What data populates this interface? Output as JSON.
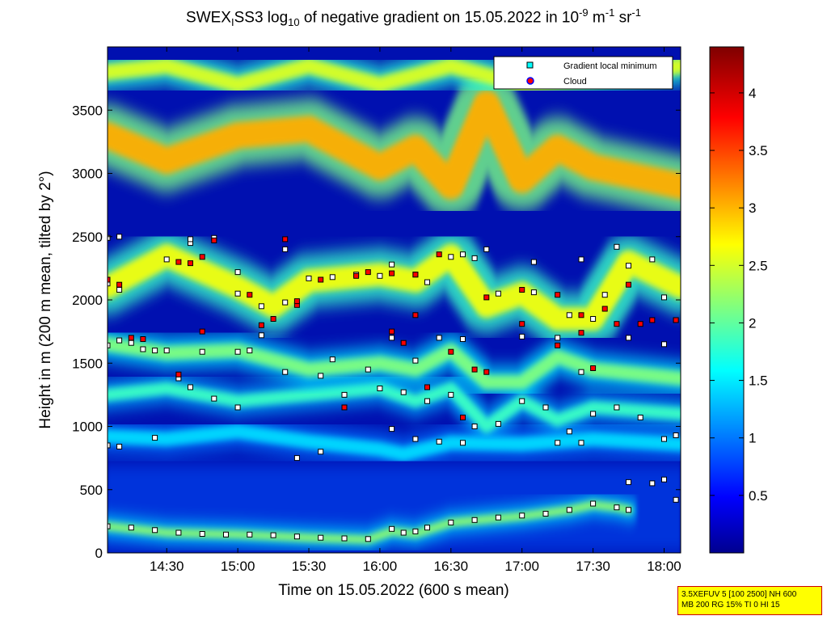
{
  "title": {
    "prefix": "SWEX",
    "sub1": "I",
    "mid": "SS3 log",
    "sub2": "10",
    "rest": " of negative gradient on 15.05.2022 in 10",
    "sup1": "-9",
    "unit1": " m",
    "sup2": "-1",
    "unit2": " sr",
    "sup3": "-1"
  },
  "param_box": {
    "line1": "3.5XEFUV 5 [100 2500] NH 600",
    "line2": "MB 200 RG 15% TI 0 HI 15"
  },
  "chart_data": {
    "type": "heatmap",
    "xlabel": "Time on 15.05.2022 (600 s mean)",
    "ylabel": "Height in m (200 m mean, tilted by 2°)",
    "xlim": [
      "14:05",
      "18:07"
    ],
    "ylim": [
      0,
      4000
    ],
    "x_ticks": [
      "14:30",
      "15:00",
      "15:30",
      "16:00",
      "16:30",
      "17:00",
      "17:30",
      "18:00"
    ],
    "y_ticks": [
      0,
      500,
      1000,
      1500,
      2000,
      2500,
      3000,
      3500
    ],
    "colorbar": {
      "ticks": [
        0.5,
        1,
        1.5,
        2,
        2.5,
        3,
        3.5,
        4
      ],
      "range": [
        0,
        4.4
      ],
      "colormap": "jet"
    },
    "legend": {
      "placement": "top-right",
      "entries": [
        {
          "label": "Gradient local minimum",
          "marker": "square",
          "color": "#00ffff"
        },
        {
          "label": "Cloud",
          "marker": "circle",
          "color": "#ff0000",
          "edge": "#0000ff"
        }
      ]
    },
    "layers": [
      {
        "name": "surface",
        "points": [
          [
            "14:05",
            210
          ],
          [
            "14:30",
            160
          ],
          [
            "15:00",
            145
          ],
          [
            "15:30",
            120
          ],
          [
            "15:55",
            105
          ],
          [
            "16:05",
            170
          ],
          [
            "16:15",
            150
          ],
          [
            "16:30",
            240
          ],
          [
            "17:00",
            290
          ],
          [
            "17:20",
            340
          ],
          [
            "17:30",
            380
          ],
          [
            "17:40",
            360
          ],
          [
            "17:45",
            340
          ]
        ],
        "level": 2.3,
        "width": 90
      },
      {
        "name": "low-band",
        "points": [
          [
            "14:05",
            920
          ],
          [
            "14:30",
            900
          ],
          [
            "15:00",
            960
          ],
          [
            "15:30",
            880
          ],
          [
            "16:00",
            820
          ],
          [
            "16:10",
            780
          ],
          [
            "16:30",
            870
          ],
          [
            "17:00",
            860
          ],
          [
            "17:30",
            900
          ],
          [
            "18:07",
            860
          ]
        ],
        "level": 1.5,
        "width": 160
      },
      {
        "name": "mid-band-1",
        "points": [
          [
            "14:05",
            1250
          ],
          [
            "14:30",
            1300
          ],
          [
            "15:00",
            1200
          ],
          [
            "15:30",
            1250
          ],
          [
            "16:00",
            1300
          ],
          [
            "16:15",
            1200
          ],
          [
            "16:30",
            1300
          ],
          [
            "16:45",
            1000
          ],
          [
            "17:00",
            1200
          ],
          [
            "17:15",
            1050
          ],
          [
            "17:30",
            1150
          ],
          [
            "18:07",
            1100
          ]
        ],
        "level": 1.9,
        "width": 140
      },
      {
        "name": "mid-band-2",
        "points": [
          [
            "14:05",
            1650
          ],
          [
            "14:30",
            1580
          ],
          [
            "15:00",
            1600
          ],
          [
            "15:30",
            1450
          ],
          [
            "16:00",
            1500
          ],
          [
            "16:15",
            1450
          ],
          [
            "16:30",
            1600
          ],
          [
            "16:45",
            1350
          ],
          [
            "17:00",
            1350
          ],
          [
            "17:15",
            1550
          ],
          [
            "17:30",
            1450
          ],
          [
            "18:07",
            1380
          ]
        ],
        "level": 2.2,
        "width": 160
      },
      {
        "name": "upper-band-1",
        "points": [
          [
            "14:05",
            2100
          ],
          [
            "14:30",
            2350
          ],
          [
            "15:00",
            2100
          ],
          [
            "15:15",
            1950
          ],
          [
            "15:30",
            2150
          ],
          [
            "16:00",
            2200
          ],
          [
            "16:15",
            2150
          ],
          [
            "16:30",
            2350
          ],
          [
            "16:45",
            1950
          ],
          [
            "17:00",
            2050
          ],
          [
            "17:15",
            1850
          ],
          [
            "17:30",
            1850
          ],
          [
            "17:45",
            2300
          ],
          [
            "18:07",
            2100
          ]
        ],
        "level": 2.7,
        "width": 260
      },
      {
        "name": "upper-band-2",
        "points": [
          [
            "14:05",
            3300
          ],
          [
            "14:30",
            3100
          ],
          [
            "15:00",
            3300
          ],
          [
            "15:30",
            3350
          ],
          [
            "16:00",
            3050
          ],
          [
            "16:15",
            3200
          ],
          [
            "16:30",
            2900
          ],
          [
            "16:45",
            3550
          ],
          [
            "17:00",
            2950
          ],
          [
            "17:15",
            3200
          ],
          [
            "17:30",
            3050
          ],
          [
            "18:07",
            2900
          ]
        ],
        "level": 3.1,
        "width": 300
      },
      {
        "name": "top-band",
        "points": [
          [
            "14:05",
            3800
          ],
          [
            "14:30",
            3850
          ],
          [
            "15:00",
            3700
          ],
          [
            "15:30",
            3850
          ],
          [
            "16:00",
            3700
          ],
          [
            "16:30",
            3850
          ],
          [
            "17:00",
            3700
          ],
          [
            "17:30",
            3750
          ],
          [
            "18:07",
            3850
          ]
        ],
        "level": 2.6,
        "width": 180
      }
    ],
    "markers_min": [
      [
        "14:05",
        2130
      ],
      [
        "14:10",
        2080
      ],
      [
        "14:20",
        1610
      ],
      [
        "14:25",
        1600
      ],
      [
        "14:30",
        1600
      ],
      [
        "14:45",
        1590
      ],
      [
        "15:00",
        1590
      ],
      [
        "15:05",
        1600
      ],
      [
        "15:20",
        1430
      ],
      [
        "15:35",
        1400
      ],
      [
        "15:45",
        1250
      ],
      [
        "15:55",
        1450
      ],
      [
        "16:00",
        1300
      ],
      [
        "16:10",
        1270
      ],
      [
        "16:20",
        1200
      ],
      [
        "16:30",
        1250
      ],
      [
        "16:40",
        1000
      ],
      [
        "16:50",
        1020
      ],
      [
        "17:00",
        1200
      ],
      [
        "17:10",
        1150
      ],
      [
        "17:20",
        960
      ],
      [
        "17:30",
        1100
      ],
      [
        "17:40",
        1150
      ],
      [
        "17:50",
        1070
      ],
      [
        "18:00",
        900
      ],
      [
        "18:05",
        930
      ],
      [
        "14:05",
        1640
      ],
      [
        "14:10",
        1680
      ],
      [
        "14:15",
        1660
      ],
      [
        "14:35",
        1380
      ],
      [
        "14:40",
        1310
      ],
      [
        "14:50",
        1220
      ],
      [
        "15:10",
        1720
      ],
      [
        "15:40",
        1530
      ],
      [
        "16:05",
        1700
      ],
      [
        "16:15",
        1520
      ],
      [
        "16:25",
        1700
      ],
      [
        "16:35",
        1690
      ],
      [
        "17:00",
        1710
      ],
      [
        "17:15",
        1700
      ],
      [
        "17:25",
        1430
      ],
      [
        "17:45",
        1700
      ],
      [
        "18:00",
        1650
      ],
      [
        "14:30",
        2320
      ],
      [
        "14:40",
        2450
      ],
      [
        "15:00",
        2050
      ],
      [
        "15:10",
        1950
      ],
      [
        "15:20",
        1980
      ],
      [
        "15:30",
        2170
      ],
      [
        "15:40",
        2180
      ],
      [
        "15:50",
        2200
      ],
      [
        "16:00",
        2190
      ],
      [
        "16:20",
        2140
      ],
      [
        "16:30",
        2340
      ],
      [
        "16:40",
        2330
      ],
      [
        "16:50",
        2050
      ],
      [
        "17:05",
        2060
      ],
      [
        "17:20",
        1880
      ],
      [
        "17:30",
        1850
      ],
      [
        "17:35",
        2040
      ],
      [
        "17:45",
        2270
      ],
      [
        "18:00",
        2020
      ],
      [
        "14:05",
        210
      ],
      [
        "14:15",
        200
      ],
      [
        "14:25",
        180
      ],
      [
        "14:35",
        160
      ],
      [
        "14:45",
        150
      ],
      [
        "14:55",
        145
      ],
      [
        "15:05",
        145
      ],
      [
        "15:15",
        140
      ],
      [
        "15:25",
        130
      ],
      [
        "15:35",
        120
      ],
      [
        "15:45",
        115
      ],
      [
        "15:55",
        110
      ],
      [
        "16:05",
        190
      ],
      [
        "16:10",
        160
      ],
      [
        "16:15",
        170
      ],
      [
        "16:20",
        200
      ],
      [
        "16:30",
        240
      ],
      [
        "16:40",
        260
      ],
      [
        "16:50",
        280
      ],
      [
        "17:00",
        295
      ],
      [
        "17:10",
        310
      ],
      [
        "17:20",
        340
      ],
      [
        "17:30",
        390
      ],
      [
        "17:40",
        360
      ],
      [
        "17:45",
        340
      ],
      [
        "14:05",
        850
      ],
      [
        "14:10",
        840
      ],
      [
        "14:25",
        910
      ],
      [
        "15:00",
        1150
      ],
      [
        "15:25",
        750
      ],
      [
        "15:35",
        800
      ],
      [
        "16:05",
        980
      ],
      [
        "16:15",
        900
      ],
      [
        "16:25",
        880
      ],
      [
        "16:35",
        870
      ],
      [
        "17:15",
        870
      ],
      [
        "17:25",
        870
      ],
      [
        "17:45",
        560
      ],
      [
        "17:55",
        550
      ],
      [
        "18:00",
        580
      ],
      [
        "18:05",
        420
      ],
      [
        "14:05",
        2490
      ],
      [
        "14:10",
        2500
      ],
      [
        "14:40",
        2480
      ],
      [
        "14:50",
        2490
      ],
      [
        "15:00",
        2220
      ],
      [
        "15:20",
        2400
      ],
      [
        "16:05",
        2280
      ],
      [
        "16:15",
        2200
      ],
      [
        "16:35",
        2360
      ],
      [
        "16:45",
        2400
      ],
      [
        "17:05",
        2300
      ],
      [
        "17:25",
        2320
      ],
      [
        "17:40",
        2420
      ],
      [
        "17:55",
        2320
      ]
    ],
    "markers_cloud": [
      [
        "14:05",
        2160
      ],
      [
        "14:35",
        2300
      ],
      [
        "14:40",
        2290
      ],
      [
        "14:50",
        2470
      ],
      [
        "15:05",
        2040
      ],
      [
        "15:20",
        2480
      ],
      [
        "15:25",
        1960
      ],
      [
        "15:35",
        2160
      ],
      [
        "15:50",
        2190
      ],
      [
        "16:05",
        2210
      ],
      [
        "16:15",
        2200
      ],
      [
        "16:25",
        2360
      ],
      [
        "16:45",
        2020
      ],
      [
        "17:00",
        2080
      ],
      [
        "17:15",
        2040
      ],
      [
        "17:25",
        1880
      ],
      [
        "17:35",
        1930
      ],
      [
        "17:45",
        2120
      ],
      [
        "18:05",
        1840
      ],
      [
        "14:15",
        1700
      ],
      [
        "14:20",
        1690
      ],
      [
        "14:35",
        1410
      ],
      [
        "14:45",
        1750
      ],
      [
        "15:10",
        1800
      ],
      [
        "15:15",
        1850
      ],
      [
        "15:45",
        1150
      ],
      [
        "16:05",
        1750
      ],
      [
        "16:10",
        1660
      ],
      [
        "16:20",
        1310
      ],
      [
        "16:30",
        1590
      ],
      [
        "16:40",
        1450
      ],
      [
        "16:45",
        1430
      ],
      [
        "17:00",
        1810
      ],
      [
        "17:15",
        1640
      ],
      [
        "17:30",
        1460
      ],
      [
        "17:40",
        1810
      ],
      [
        "17:55",
        1840
      ],
      [
        "18:05",
        1840
      ],
      [
        "14:10",
        2120
      ],
      [
        "14:45",
        2340
      ],
      [
        "15:25",
        1990
      ],
      [
        "15:55",
        2220
      ],
      [
        "16:15",
        1880
      ],
      [
        "16:35",
        1070
      ],
      [
        "17:25",
        1740
      ],
      [
        "17:50",
        1810
      ]
    ]
  }
}
